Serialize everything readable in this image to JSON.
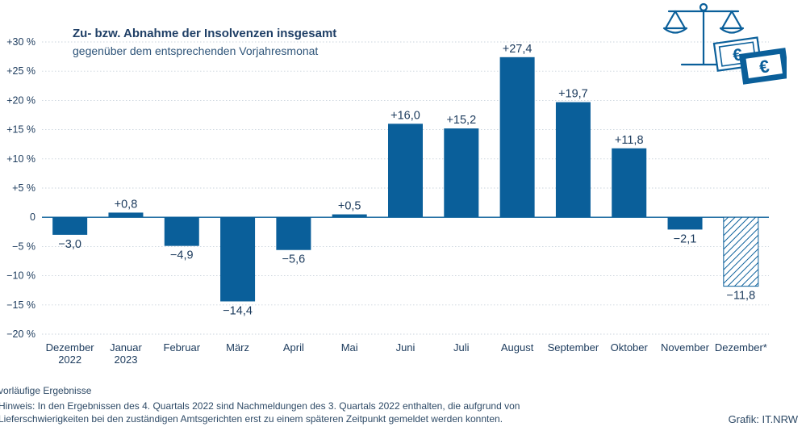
{
  "chart_data": {
    "type": "bar",
    "title": "Zu- bzw. Abnahme der Insolvenzen insgesamt",
    "subtitle": "gegenüber dem entsprechenden Vorjahresmonat",
    "categories": [
      [
        "Dezember",
        "2022"
      ],
      [
        "Januar",
        "2023"
      ],
      [
        "Februar"
      ],
      [
        "März"
      ],
      [
        "April"
      ],
      [
        "Mai"
      ],
      [
        "Juni"
      ],
      [
        "Juli"
      ],
      [
        "August"
      ],
      [
        "September"
      ],
      [
        "Oktober"
      ],
      [
        "November"
      ],
      [
        "Dezember*"
      ]
    ],
    "values": [
      -3.0,
      0.8,
      -4.9,
      -14.4,
      -5.6,
      0.5,
      16.0,
      15.2,
      27.4,
      19.7,
      11.8,
      -2.1,
      -11.8
    ],
    "value_labels": [
      "−3,0",
      "+0,8",
      "−4,9",
      "−14,4",
      "−5,6",
      "+0,5",
      "+16,0",
      "+15,2",
      "+27,4",
      "+19,7",
      "+11,8",
      "−2,1",
      "−11,8"
    ],
    "preliminary": [
      false,
      false,
      false,
      false,
      false,
      false,
      false,
      false,
      false,
      false,
      false,
      false,
      true
    ],
    "ylim": [
      -20,
      30
    ],
    "yticks": [
      30,
      25,
      20,
      15,
      10,
      5,
      0,
      -5,
      -10,
      -15,
      -20
    ],
    "ytick_labels": [
      "+30 %",
      "+25 %",
      "+20 %",
      "+15 %",
      "+10 %",
      "+5 %",
      "0",
      "−5 %",
      "−10 %",
      "−15 %",
      "−20 %"
    ],
    "grid": true,
    "colors": {
      "bar": "#0a5f9a",
      "text": "#1b3a5c",
      "grid": "#c9d3dc",
      "axis": "#0a5f9a"
    }
  },
  "footnotes": {
    "line1": "vorläufige Ergebnisse",
    "line2": "Hinweis: In den Ergebnissen des 4. Quartals 2022 sind Nachmeldungen des 3. Quartals 2022 enthalten, die aufgrund von",
    "line3": "Lieferschwierigkeiten bei den zuständigen Amtsgerichten erst zu einem späteren Zeitpunkt gemeldet werden konnten."
  },
  "credit": "Grafik: IT.NRW",
  "logo": {
    "icon": "scales-of-justice-and-euro-banknotes-icon",
    "glyph": "€",
    "color": "#0a5f9a"
  }
}
